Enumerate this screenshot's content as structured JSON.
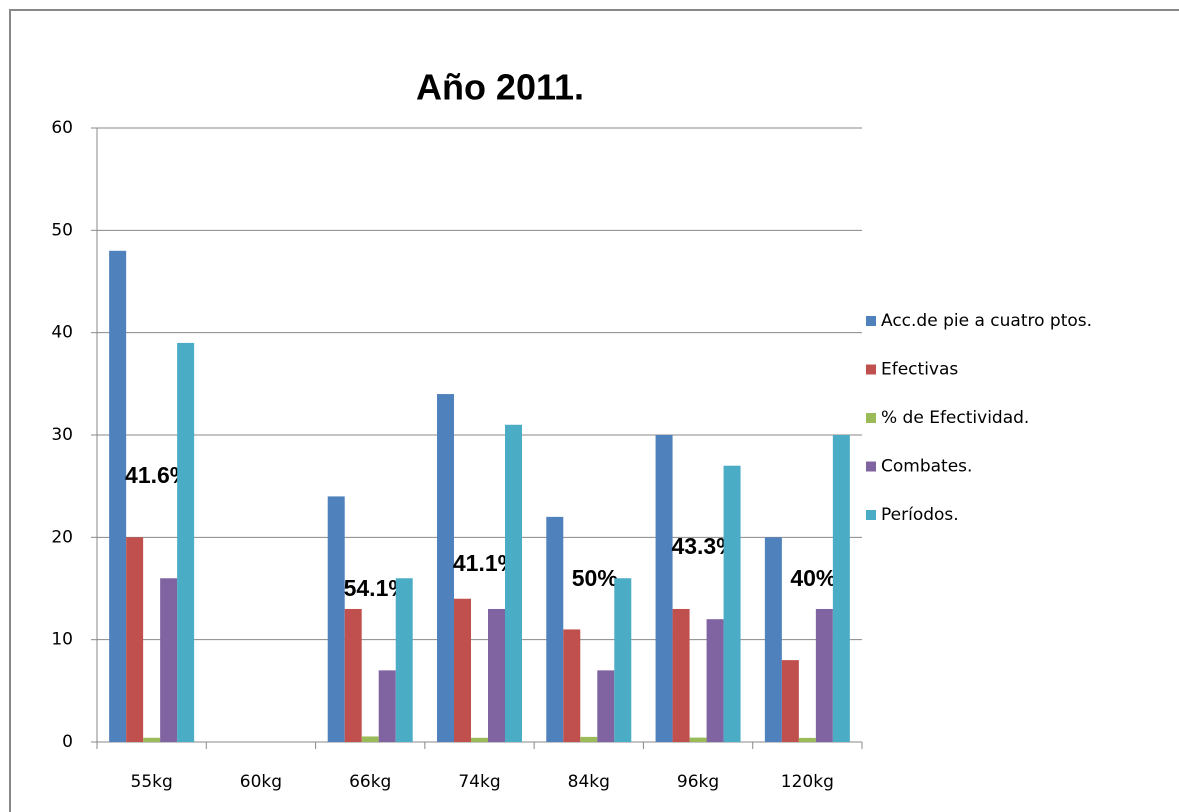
{
  "chart_data": {
    "type": "bar",
    "title": "Año 2011.",
    "categories": [
      "55kg",
      "60kg",
      "66kg",
      "74kg",
      "84kg",
      "96kg",
      "120kg"
    ],
    "series": [
      {
        "name": "Acc.de pie a cuatro ptos.",
        "color": "#4f81bd",
        "values": [
          48,
          null,
          24,
          34,
          22,
          30,
          20
        ]
      },
      {
        "name": "Efectivas",
        "color": "#c0504d",
        "values": [
          20,
          null,
          13,
          14,
          11,
          13,
          8
        ]
      },
      {
        "name": "% de Efectividad.",
        "color": "#9bbb59",
        "values": [
          0.416,
          null,
          0.541,
          0.411,
          0.5,
          0.433,
          0.4
        ],
        "value_labels": [
          "41.6%",
          null,
          "54.1%",
          "41.1%",
          "50%",
          "43.3%",
          "40%"
        ]
      },
      {
        "name": "Combates.",
        "color": "#8064a2",
        "values": [
          16,
          null,
          7,
          13,
          7,
          12,
          13
        ]
      },
      {
        "name": "Períodos.",
        "color": "#4bacc6",
        "values": [
          39,
          null,
          16,
          31,
          16,
          27,
          30
        ]
      }
    ],
    "ylim": [
      0,
      60
    ],
    "yticks": [
      0,
      10,
      20,
      30,
      40,
      50,
      60
    ],
    "grid": true,
    "legend": "right"
  }
}
